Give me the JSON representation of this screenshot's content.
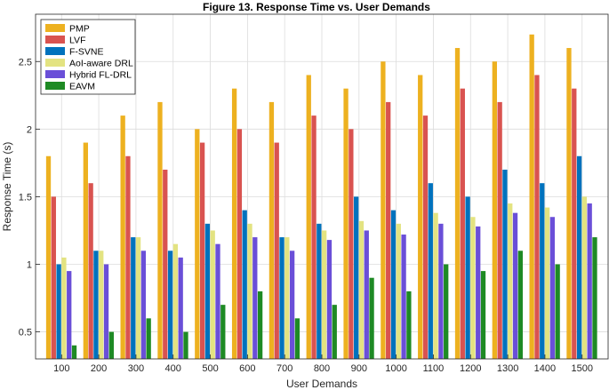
{
  "chart_data": {
    "type": "bar",
    "title": "Figure 13. Response Time vs. User Demands",
    "xlabel": "User Demands",
    "ylabel": "Response Time (s)",
    "ylim": [
      0.3,
      2.85
    ],
    "yticks": [
      0.5,
      1,
      1.5,
      2,
      2.5
    ],
    "ytick_labels": [
      "0.5",
      "1",
      "1.5",
      "2",
      "2.5"
    ],
    "grid": true,
    "legend_position": "top-left",
    "categories": [
      "100",
      "200",
      "300",
      "400",
      "500",
      "600",
      "700",
      "800",
      "900",
      "1000",
      "1100",
      "1200",
      "1300",
      "1400",
      "1500"
    ],
    "series": [
      {
        "name": "PMP",
        "color": "#EDB120",
        "values": [
          1.8,
          1.9,
          2.1,
          2.2,
          2.0,
          2.3,
          2.2,
          2.4,
          2.3,
          2.5,
          2.4,
          2.6,
          2.5,
          2.7,
          2.6
        ]
      },
      {
        "name": "LVF",
        "color": "#D95350",
        "values": [
          1.5,
          1.6,
          1.8,
          1.7,
          1.9,
          2.0,
          1.9,
          2.1,
          2.0,
          2.2,
          2.1,
          2.3,
          2.2,
          2.4,
          2.3
        ]
      },
      {
        "name": "F-SVNE",
        "color": "#0072BD",
        "values": [
          1.0,
          1.1,
          1.2,
          1.1,
          1.3,
          1.4,
          1.2,
          1.3,
          1.5,
          1.4,
          1.6,
          1.5,
          1.7,
          1.6,
          1.8
        ]
      },
      {
        "name": "AoI-aware DRL",
        "color": "#E3E381",
        "values": [
          1.05,
          1.1,
          1.2,
          1.15,
          1.25,
          1.3,
          1.2,
          1.25,
          1.32,
          1.3,
          1.38,
          1.35,
          1.45,
          1.42,
          1.5
        ]
      },
      {
        "name": "Hybrid FL-DRL",
        "color": "#6A4FD8",
        "values": [
          0.95,
          1.0,
          1.1,
          1.05,
          1.15,
          1.2,
          1.1,
          1.18,
          1.25,
          1.22,
          1.3,
          1.28,
          1.38,
          1.35,
          1.45
        ]
      },
      {
        "name": "EAVM",
        "color": "#1E8A24",
        "values": [
          0.4,
          0.5,
          0.6,
          0.5,
          0.7,
          0.8,
          0.6,
          0.7,
          0.9,
          0.8,
          1.0,
          0.95,
          1.1,
          1.0,
          1.2
        ]
      }
    ]
  }
}
